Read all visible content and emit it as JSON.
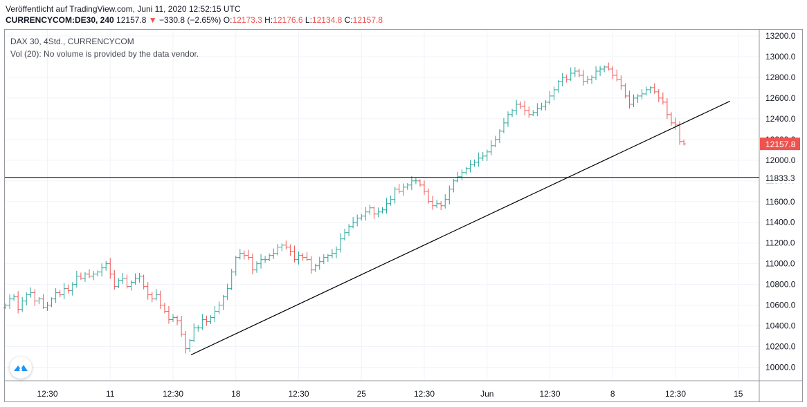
{
  "header": {
    "published": "Veröffentlicht auf TradingView.com, Juni 11, 2020 12:52:15 UTC",
    "symbol": "CURRENCYCOM:DE30, 240",
    "last": "12157.8",
    "change_arrow": "▼",
    "change": "−330.8 (−2.65%)",
    "open_label": "O:",
    "open": "12173.3",
    "high_label": "H:",
    "high": "12176.6",
    "low_label": "L:",
    "low": "12134.8",
    "close_label": "C:",
    "close": "12157.8"
  },
  "legend": {
    "title": "DAX 30, 4Std., CURRENCYCOM",
    "volume_note": "Vol (20): No volume is provided by the data vendor."
  },
  "colors": {
    "up": "#26a69a",
    "down": "#ef5350",
    "grid": "#f0f3fa",
    "axis": "#9598a1",
    "line": "#000000"
  },
  "icons": {
    "logo": "tradingview-logo-icon"
  },
  "chart_data": {
    "type": "ohlc",
    "ylim": [
      9870,
      13260
    ],
    "yticks": [
      10000,
      10200,
      10400,
      10600,
      10800,
      11000,
      11200,
      11400,
      11600,
      11800,
      12000,
      12200,
      12400,
      12600,
      12800,
      13000,
      13200
    ],
    "ytick_labels": [
      "10000.0",
      "10200.0",
      "10400.0",
      "10600.0",
      "10800.0",
      "11000.0",
      "11200.0",
      "11400.0",
      "11600.0",
      "11800.0",
      "12000.0",
      "12200.0",
      "12400.0",
      "12600.0",
      "12800.0",
      "13000.0",
      "13200.0"
    ],
    "xticks": [
      {
        "label": "12:30",
        "bar": 10
      },
      {
        "label": "11",
        "bar": 25
      },
      {
        "label": "12:30",
        "bar": 40
      },
      {
        "label": "18",
        "bar": 55
      },
      {
        "label": "12:30",
        "bar": 70
      },
      {
        "label": "25",
        "bar": 85
      },
      {
        "label": "12:30",
        "bar": 100
      },
      {
        "label": "Jun",
        "bar": 115
      },
      {
        "label": "12:30",
        "bar": 130
      },
      {
        "label": "8",
        "bar": 145
      },
      {
        "label": "12:30",
        "bar": 160
      },
      {
        "label": "15",
        "bar": 175
      }
    ],
    "bars_close": [
      10600,
      10660,
      10680,
      10560,
      10640,
      10700,
      10720,
      10640,
      10660,
      10580,
      10600,
      10660,
      10720,
      10700,
      10760,
      10740,
      10800,
      10880,
      10860,
      10900,
      10880,
      10900,
      10920,
      10960,
      11000,
      10900,
      10780,
      10840,
      10860,
      10780,
      10820,
      10860,
      10880,
      10780,
      10700,
      10660,
      10700,
      10600,
      10540,
      10460,
      10480,
      10450,
      10320,
      10180,
      10260,
      10380,
      10380,
      10460,
      10440,
      10480,
      10540,
      10600,
      10680,
      10760,
      10920,
      11060,
      11100,
      11080,
      11060,
      10940,
      11000,
      11040,
      11040,
      11080,
      11100,
      11160,
      11180,
      11160,
      11120,
      11040,
      11080,
      11060,
      11040,
      10940,
      10980,
      11020,
      11060,
      11080,
      11100,
      11140,
      11240,
      11300,
      11360,
      11400,
      11440,
      11460,
      11500,
      11540,
      11480,
      11500,
      11520,
      11580,
      11620,
      11720,
      11700,
      11740,
      11760,
      11800,
      11800,
      11760,
      11700,
      11600,
      11560,
      11580,
      11560,
      11620,
      11720,
      11800,
      11840,
      11880,
      11920,
      11960,
      11980,
      12020,
      12040,
      12080,
      12140,
      12200,
      12280,
      12360,
      12440,
      12480,
      12540,
      12520,
      12480,
      12440,
      12460,
      12500,
      12520,
      12560,
      12620,
      12680,
      12760,
      12800,
      12780,
      12840,
      12860,
      12820,
      12760,
      12780,
      12800,
      12860,
      12880,
      12900,
      12880,
      12820,
      12780,
      12720,
      12620,
      12540,
      12600,
      12620,
      12640,
      12680,
      12700,
      12660,
      12600,
      12560,
      12440,
      12360,
      12340,
      12180,
      12157.8
    ],
    "last_price": 12157.8,
    "hline": 11833.3,
    "trendline": [
      {
        "bar": 44.3,
        "price": 10120
      },
      {
        "bar": 173,
        "price": 12570
      }
    ]
  }
}
